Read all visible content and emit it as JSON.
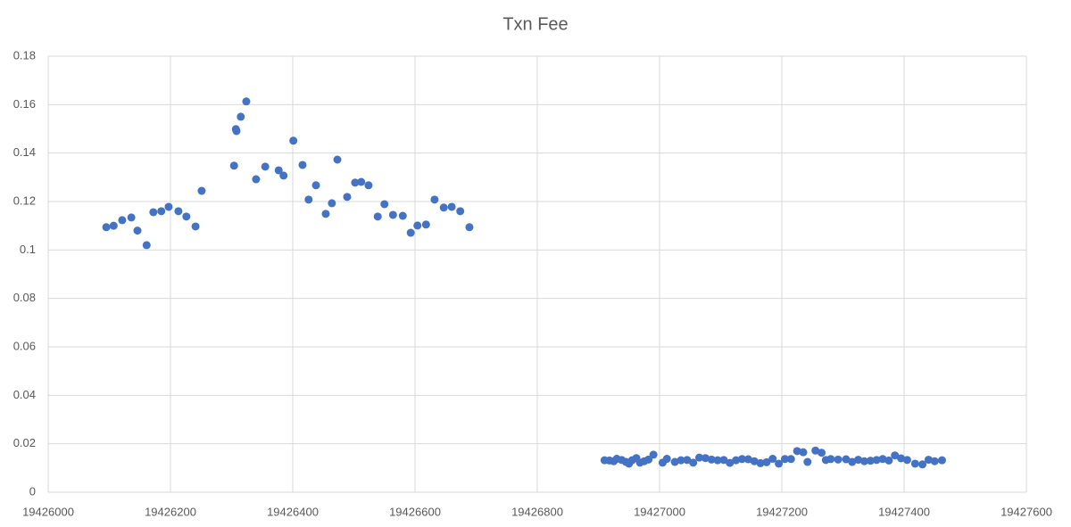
{
  "chart_data": {
    "type": "scatter",
    "title": "Txn Fee",
    "x": [
      19426095,
      19426107,
      19426121,
      19426136,
      19426146,
      19426161,
      19426172,
      19426185,
      19426197,
      19426213,
      19426226,
      19426241,
      19426251,
      19426304,
      19426307,
      19426308,
      19426315,
      19426324,
      19426340,
      19426355,
      19426377,
      19426385,
      19426401,
      19426416,
      19426426,
      19426438,
      19426454,
      19426464,
      19426473,
      19426489,
      19426502,
      19426512,
      19426524,
      19426539,
      19426550,
      19426564,
      19426580,
      19426593,
      19426604,
      19426618,
      19426632,
      19426647,
      19426660,
      19426674,
      19426689,
      19426910,
      19426918,
      19426925,
      19426930,
      19426938,
      19426945,
      19426950,
      19426955,
      19426962,
      19426968,
      19426975,
      19426982,
      19426990,
      19427005,
      19427012,
      19427025,
      19427035,
      19427045,
      19427055,
      19427065,
      19427075,
      19427085,
      19427095,
      19427105,
      19427115,
      19427125,
      19427135,
      19427145,
      19427155,
      19427165,
      19427175,
      19427185,
      19427195,
      19427205,
      19427215,
      19427225,
      19427235,
      19427242,
      19427255,
      19427265,
      19427272,
      19427280,
      19427292,
      19427305,
      19427315,
      19427325,
      19427335,
      19427345,
      19427355,
      19427365,
      19427375,
      19427385,
      19427395,
      19427405,
      19427418,
      19427430,
      19427440,
      19427450,
      19427462
    ],
    "values": [
      0.1094,
      0.11,
      0.1123,
      0.1134,
      0.108,
      0.102,
      0.1156,
      0.116,
      0.1178,
      0.116,
      0.1138,
      0.1097,
      0.1244,
      0.1348,
      0.1499,
      0.1491,
      0.155,
      0.1613,
      0.1292,
      0.1344,
      0.1329,
      0.1307,
      0.1451,
      0.1351,
      0.1208,
      0.1267,
      0.1149,
      0.1193,
      0.1373,
      0.1219,
      0.1278,
      0.1281,
      0.1267,
      0.1138,
      0.1189,
      0.1145,
      0.1141,
      0.1071,
      0.1101,
      0.1105,
      0.1208,
      0.1175,
      0.1178,
      0.116,
      0.1094,
      0.0132,
      0.0131,
      0.0128,
      0.0138,
      0.0133,
      0.0125,
      0.0118,
      0.0132,
      0.0141,
      0.0122,
      0.0128,
      0.0135,
      0.0155,
      0.0122,
      0.0138,
      0.0125,
      0.0132,
      0.0133,
      0.0122,
      0.0143,
      0.0141,
      0.0135,
      0.0132,
      0.0133,
      0.0121,
      0.0132,
      0.0137,
      0.0136,
      0.0128,
      0.012,
      0.0124,
      0.0138,
      0.0118,
      0.0137,
      0.0137,
      0.017,
      0.0165,
      0.0125,
      0.0172,
      0.0163,
      0.0133,
      0.0137,
      0.0135,
      0.0136,
      0.0125,
      0.0134,
      0.0128,
      0.013,
      0.0133,
      0.0137,
      0.0131,
      0.0152,
      0.014,
      0.0133,
      0.0118,
      0.0115,
      0.0134,
      0.0128,
      0.0132
    ],
    "color": "#4472c4",
    "xlim": [
      19426000,
      19427600
    ],
    "xticks": [
      19426000,
      19426200,
      19426400,
      19426600,
      19426800,
      19427000,
      19427200,
      19427400,
      19427600
    ],
    "ylim": [
      0,
      0.18
    ],
    "yticks": [
      0,
      0.02,
      0.04,
      0.06,
      0.08,
      0.1,
      0.12,
      0.14,
      0.16,
      0.18
    ],
    "grid": true
  }
}
